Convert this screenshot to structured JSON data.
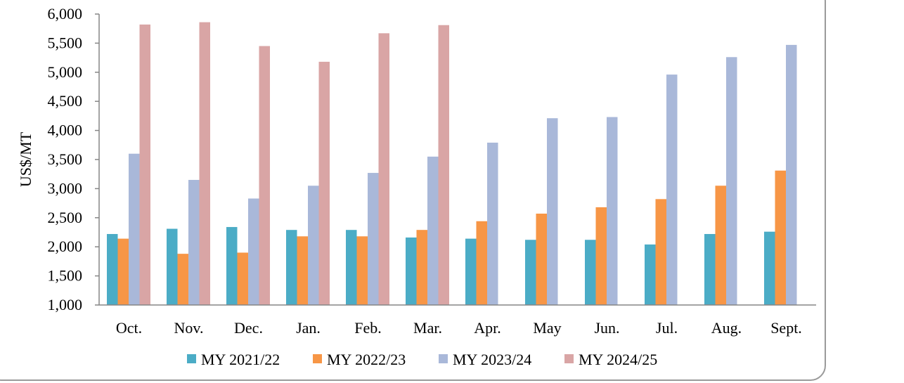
{
  "chart_data": {
    "type": "bar",
    "title": "",
    "xlabel": "",
    "ylabel": "US$/MT",
    "ylim": [
      1000,
      6000
    ],
    "ytick_step": 500,
    "ytick_labels": [
      "1,000",
      "1,500",
      "2,000",
      "2,500",
      "3,000",
      "3,500",
      "4,000",
      "4,500",
      "5,000",
      "5,500",
      "6,000"
    ],
    "categories": [
      "Oct.",
      "Nov.",
      "Dec.",
      "Jan.",
      "Feb.",
      "Mar.",
      "Apr.",
      "May",
      "Jun.",
      "Jul.",
      "Aug.",
      "Sept."
    ],
    "grid": false,
    "legend_position": "bottom",
    "series": [
      {
        "name": "MY 2021/22",
        "color": "#4bacc6",
        "values": [
          2220,
          2310,
          2340,
          2290,
          2290,
          2160,
          2140,
          2120,
          2120,
          2040,
          2220,
          2260
        ]
      },
      {
        "name": "MY 2022/23",
        "color": "#f79646",
        "values": [
          2140,
          1880,
          1900,
          2180,
          2180,
          2290,
          2440,
          2570,
          2680,
          2820,
          3050,
          3310
        ]
      },
      {
        "name": "MY 2023/24",
        "color": "#a9b8d9",
        "values": [
          3600,
          3150,
          2830,
          3050,
          3270,
          3550,
          3790,
          4210,
          4230,
          4960,
          5260,
          5470
        ]
      },
      {
        "name": "MY 2024/25",
        "color": "#d9a5a5",
        "values": [
          5820,
          5860,
          5450,
          5180,
          5670,
          5810,
          null,
          null,
          null,
          null,
          null,
          null
        ]
      }
    ]
  }
}
